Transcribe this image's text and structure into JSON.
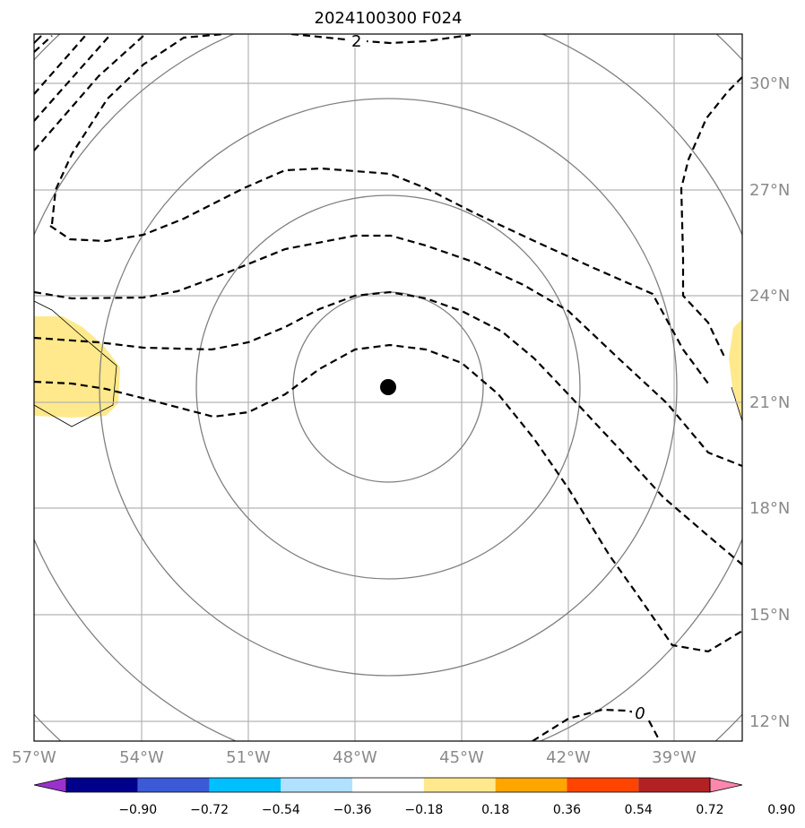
{
  "title": "2024100300 F024",
  "lat_labels": [
    "30°N",
    "27°N",
    "24°N",
    "21°N",
    "18°N",
    "15°N",
    "12°N"
  ],
  "lon_labels": [
    "57°W",
    "54°W",
    "51°W",
    "48°W",
    "45°W",
    "42°W",
    "39°W"
  ],
  "contour_labels": [
    "2",
    "0"
  ],
  "colorbar": {
    "ticks": [
      "−0.90",
      "−0.72",
      "−0.54",
      "−0.36",
      "−0.18",
      "0.18",
      "0.36",
      "0.54",
      "0.72",
      "0.90"
    ],
    "colors": [
      "#9932cc",
      "#00008b",
      "#3b5bd6",
      "#00bfff",
      "#b0e2ff",
      "#ffffff",
      "#ffe98c",
      "#ffa500",
      "#ff4500",
      "#b22222",
      "#ff86ad"
    ]
  },
  "storm_marker": {
    "lat": 21.4,
    "lon": -47.0
  },
  "fill_color": "#ffe98c"
}
